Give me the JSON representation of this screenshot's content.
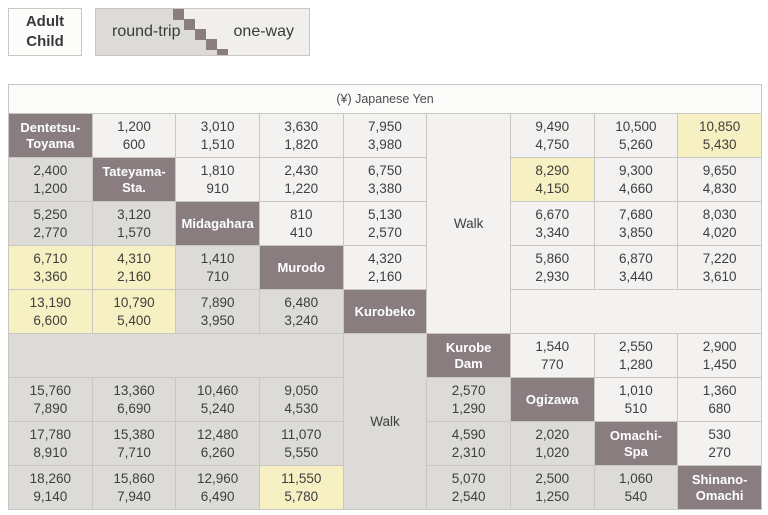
{
  "legend": {
    "fare_type": {
      "line1": "Adult",
      "line2": "Child"
    },
    "trip_type": {
      "round_trip": "round-trip",
      "one_way": "one-way"
    }
  },
  "colors": {
    "station_bg": "#8a7d7f",
    "one_way_bg": "#f3f2f0",
    "round_trip_bg": "#dcdbd8",
    "highlight_bg": "#f7f0c2",
    "border": "#c8c7c4"
  },
  "table": {
    "header": "(¥) Japanese Yen",
    "rows": [
      [
        {
          "t": "station",
          "id": "dentetsu-toyama",
          "lines": [
            "Dentetsu-",
            "Toyama"
          ]
        },
        {
          "t": "fare",
          "adult": "1,200",
          "child": "600",
          "zone": "ow",
          "hl": false
        },
        {
          "t": "fare",
          "adult": "3,010",
          "child": "1,510",
          "zone": "ow",
          "hl": false
        },
        {
          "t": "fare",
          "adult": "3,630",
          "child": "1,820",
          "zone": "ow",
          "hl": false
        },
        {
          "t": "fare",
          "adult": "7,950",
          "child": "3,980",
          "zone": "ow",
          "hl": false
        },
        {
          "t": "walk",
          "dir": "upper",
          "label": "Walk",
          "zone": "ow",
          "rowspan": 5
        },
        {
          "t": "fare",
          "adult": "9,490",
          "child": "4,750",
          "zone": "ow",
          "hl": false
        },
        {
          "t": "fare",
          "adult": "10,500",
          "child": "5,260",
          "zone": "ow",
          "hl": false
        },
        {
          "t": "fare",
          "adult": "10,850",
          "child": "5,430",
          "zone": "ow",
          "hl": true
        }
      ],
      [
        {
          "t": "fare",
          "adult": "2,400",
          "child": "1,200",
          "zone": "rt",
          "hl": false
        },
        {
          "t": "station",
          "id": "tateyama-sta",
          "lines": [
            "Tateyama-",
            "Sta."
          ]
        },
        {
          "t": "fare",
          "adult": "1,810",
          "child": "910",
          "zone": "ow",
          "hl": false
        },
        {
          "t": "fare",
          "adult": "2,430",
          "child": "1,220",
          "zone": "ow",
          "hl": false
        },
        {
          "t": "fare",
          "adult": "6,750",
          "child": "3,380",
          "zone": "ow",
          "hl": false
        },
        {
          "t": "fare",
          "adult": "8,290",
          "child": "4,150",
          "zone": "ow",
          "hl": true
        },
        {
          "t": "fare",
          "adult": "9,300",
          "child": "4,660",
          "zone": "ow",
          "hl": false
        },
        {
          "t": "fare",
          "adult": "9,650",
          "child": "4,830",
          "zone": "ow",
          "hl": false
        }
      ],
      [
        {
          "t": "fare",
          "adult": "5,250",
          "child": "2,770",
          "zone": "rt",
          "hl": false
        },
        {
          "t": "fare",
          "adult": "3,120",
          "child": "1,570",
          "zone": "rt",
          "hl": false
        },
        {
          "t": "station",
          "id": "midagahara",
          "lines": [
            "Midagahara"
          ]
        },
        {
          "t": "fare",
          "adult": "810",
          "child": "410",
          "zone": "ow",
          "hl": false
        },
        {
          "t": "fare",
          "adult": "5,130",
          "child": "2,570",
          "zone": "ow",
          "hl": false
        },
        {
          "t": "fare",
          "adult": "6,670",
          "child": "3,340",
          "zone": "ow",
          "hl": false
        },
        {
          "t": "fare",
          "adult": "7,680",
          "child": "3,850",
          "zone": "ow",
          "hl": false
        },
        {
          "t": "fare",
          "adult": "8,030",
          "child": "4,020",
          "zone": "ow",
          "hl": false
        }
      ],
      [
        {
          "t": "fare",
          "adult": "6,710",
          "child": "3,360",
          "zone": "rt",
          "hl": true
        },
        {
          "t": "fare",
          "adult": "4,310",
          "child": "2,160",
          "zone": "rt",
          "hl": true
        },
        {
          "t": "fare",
          "adult": "1,410",
          "child": "710",
          "zone": "rt",
          "hl": false
        },
        {
          "t": "station",
          "id": "murodo",
          "lines": [
            "Murodo"
          ]
        },
        {
          "t": "fare",
          "adult": "4,320",
          "child": "2,160",
          "zone": "ow",
          "hl": false
        },
        {
          "t": "fare",
          "adult": "5,860",
          "child": "2,930",
          "zone": "ow",
          "hl": false
        },
        {
          "t": "fare",
          "adult": "6,870",
          "child": "3,440",
          "zone": "ow",
          "hl": false
        },
        {
          "t": "fare",
          "adult": "7,220",
          "child": "3,610",
          "zone": "ow",
          "hl": false
        }
      ],
      [
        {
          "t": "fare",
          "adult": "13,190",
          "child": "6,600",
          "zone": "rt",
          "hl": true
        },
        {
          "t": "fare",
          "adult": "10,790",
          "child": "5,400",
          "zone": "rt",
          "hl": true
        },
        {
          "t": "fare",
          "adult": "7,890",
          "child": "3,950",
          "zone": "rt",
          "hl": false
        },
        {
          "t": "fare",
          "adult": "6,480",
          "child": "3,240",
          "zone": "rt",
          "hl": false
        },
        {
          "t": "station",
          "id": "kurobeko",
          "lines": [
            "Kurobeko"
          ]
        },
        {
          "t": "empty",
          "zone": "ow",
          "colspan": 3
        }
      ],
      [
        {
          "t": "empty",
          "zone": "rt",
          "colspan": 4
        },
        {
          "t": "walk",
          "dir": "lower",
          "label": "Walk",
          "zone": "rt",
          "rowspan": 4
        },
        {
          "t": "station",
          "id": "kurobe-dam",
          "lines": [
            "Kurobe",
            "Dam"
          ]
        },
        {
          "t": "fare",
          "adult": "1,540",
          "child": "770",
          "zone": "ow",
          "hl": false
        },
        {
          "t": "fare",
          "adult": "2,550",
          "child": "1,280",
          "zone": "ow",
          "hl": false
        },
        {
          "t": "fare",
          "adult": "2,900",
          "child": "1,450",
          "zone": "ow",
          "hl": false
        }
      ],
      [
        {
          "t": "fare",
          "adult": "15,760",
          "child": "7,890",
          "zone": "rt",
          "hl": false
        },
        {
          "t": "fare",
          "adult": "13,360",
          "child": "6,690",
          "zone": "rt",
          "hl": false
        },
        {
          "t": "fare",
          "adult": "10,460",
          "child": "5,240",
          "zone": "rt",
          "hl": false
        },
        {
          "t": "fare",
          "adult": "9,050",
          "child": "4,530",
          "zone": "rt",
          "hl": false
        },
        {
          "t": "fare",
          "adult": "2,570",
          "child": "1,290",
          "zone": "rt",
          "hl": false
        },
        {
          "t": "station",
          "id": "ogizawa",
          "lines": [
            "Ogizawa"
          ]
        },
        {
          "t": "fare",
          "adult": "1,010",
          "child": "510",
          "zone": "ow",
          "hl": false
        },
        {
          "t": "fare",
          "adult": "1,360",
          "child": "680",
          "zone": "ow",
          "hl": false
        }
      ],
      [
        {
          "t": "fare",
          "adult": "17,780",
          "child": "8,910",
          "zone": "rt",
          "hl": false
        },
        {
          "t": "fare",
          "adult": "15,380",
          "child": "7,710",
          "zone": "rt",
          "hl": false
        },
        {
          "t": "fare",
          "adult": "12,480",
          "child": "6,260",
          "zone": "rt",
          "hl": false
        },
        {
          "t": "fare",
          "adult": "11,070",
          "child": "5,550",
          "zone": "rt",
          "hl": false
        },
        {
          "t": "fare",
          "adult": "4,590",
          "child": "2,310",
          "zone": "rt",
          "hl": false
        },
        {
          "t": "fare",
          "adult": "2,020",
          "child": "1,020",
          "zone": "rt",
          "hl": false
        },
        {
          "t": "station",
          "id": "omachi-spa",
          "lines": [
            "Omachi-",
            "Spa"
          ]
        },
        {
          "t": "fare",
          "adult": "530",
          "child": "270",
          "zone": "ow",
          "hl": false
        }
      ],
      [
        {
          "t": "fare",
          "adult": "18,260",
          "child": "9,140",
          "zone": "rt",
          "hl": false
        },
        {
          "t": "fare",
          "adult": "15,860",
          "child": "7,940",
          "zone": "rt",
          "hl": false
        },
        {
          "t": "fare",
          "adult": "12,960",
          "child": "6,490",
          "zone": "rt",
          "hl": false
        },
        {
          "t": "fare",
          "adult": "11,550",
          "child": "5,780",
          "zone": "rt",
          "hl": true
        },
        {
          "t": "fare",
          "adult": "5,070",
          "child": "2,540",
          "zone": "rt",
          "hl": false
        },
        {
          "t": "fare",
          "adult": "2,500",
          "child": "1,250",
          "zone": "rt",
          "hl": false
        },
        {
          "t": "fare",
          "adult": "1,060",
          "child": "540",
          "zone": "rt",
          "hl": false
        },
        {
          "t": "station",
          "id": "shinano-omachi",
          "lines": [
            "Shinano-",
            "Omachi"
          ]
        }
      ]
    ]
  }
}
